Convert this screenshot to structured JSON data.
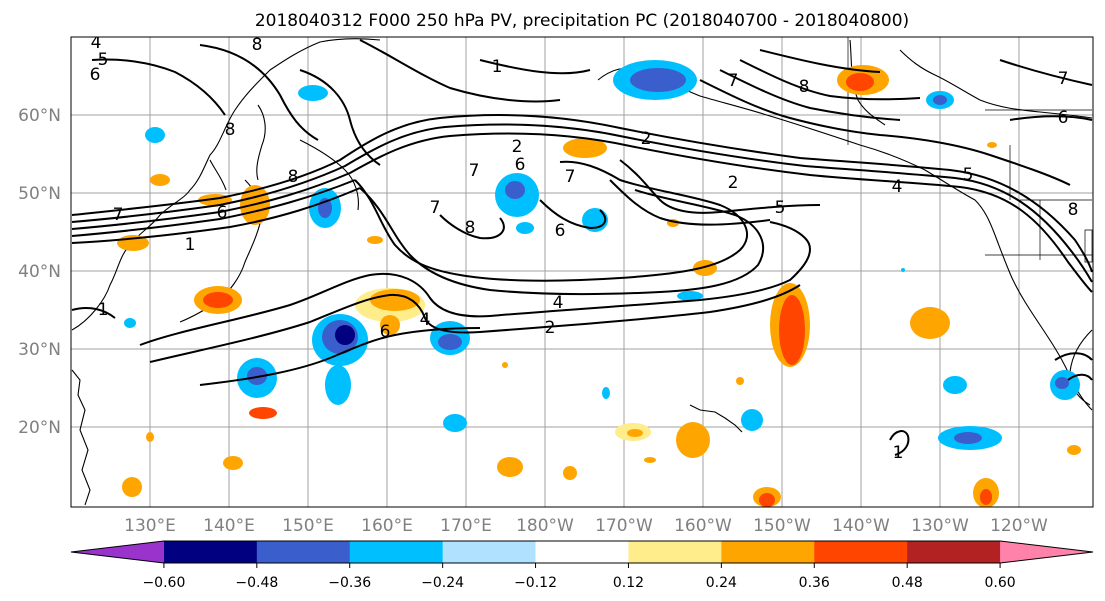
{
  "map": {
    "title": "2018040312 F000 250 hPa PV, precipitation PC (2018040700 - 2018040800)",
    "lat_labels": [
      "60°N",
      "50°N",
      "40°N",
      "30°N",
      "20°N"
    ],
    "lat_values": [
      60,
      50,
      40,
      30,
      20
    ],
    "lon_labels": [
      "130°E",
      "140°E",
      "150°E",
      "160°E",
      "170°E",
      "180°W",
      "170°W",
      "160°W",
      "150°W",
      "140°W",
      "130°W",
      "120°W"
    ],
    "lon_values": [
      130,
      140,
      150,
      160,
      170,
      180,
      190,
      200,
      210,
      220,
      230,
      240
    ],
    "gridlines": true,
    "contour_labels": [
      "1",
      "2",
      "4",
      "5",
      "6",
      "7",
      "8"
    ],
    "colorbar": {
      "tick_labels": [
        "−0.60",
        "−0.48",
        "−0.36",
        "−0.24",
        "−0.12",
        "0.12",
        "0.24",
        "0.36",
        "0.48",
        "0.60"
      ],
      "colors": [
        "#9933cc",
        "#000080",
        "#3a5fcd",
        "#00bfff",
        "#b0e2ff",
        "#ffffff",
        "#ffec8b",
        "#ffa500",
        "#ff4500",
        "#b22222",
        "#ff82ab"
      ],
      "extend": "both"
    },
    "colors": {
      "negative_dark": "#000080",
      "negative_mid": "#3a5fcd",
      "negative_light": "#00bfff",
      "negative_pale": "#b0e2ff",
      "positive_pale": "#ffec8b",
      "positive_mid": "#ffa500",
      "positive_strong": "#ff4500",
      "positive_dark": "#b22222"
    }
  }
}
